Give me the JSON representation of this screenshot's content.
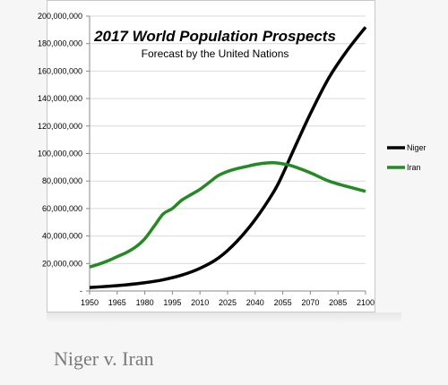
{
  "caption": "Niger v. Iran",
  "chart_data": {
    "type": "line",
    "title": "2017 World Population Prospects",
    "subtitle": "Forecast by the United Nations",
    "xlabel": "",
    "ylabel": "",
    "x_ticks": [
      "1950",
      "1965",
      "1980",
      "1995",
      "2010",
      "2025",
      "2040",
      "2055",
      "2070",
      "2085",
      "2100"
    ],
    "y_ticks": [
      "-",
      "20,000,000",
      "40,000,000",
      "60,000,000",
      "80,000,000",
      "100,000,000",
      "120,000,000",
      "140,000,000",
      "160,000,000",
      "180,000,000",
      "200,000,000"
    ],
    "xlim": [
      1950,
      2100
    ],
    "ylim": [
      0,
      200000000
    ],
    "grid": "horizontal",
    "legend": "right",
    "series": [
      {
        "name": "Niger",
        "color": "#000000",
        "x": [
          1950,
          1960,
          1970,
          1980,
          1990,
          2000,
          2010,
          2020,
          2030,
          2040,
          2050,
          2055,
          2060,
          2070,
          2080,
          2090,
          2100
        ],
        "values": [
          2500000,
          3400000,
          4500000,
          6000000,
          8200000,
          11500000,
          16500000,
          24000000,
          36000000,
          52000000,
          72000000,
          85000000,
          100000000,
          129000000,
          155000000,
          175000000,
          192000000
        ]
      },
      {
        "name": "Iran",
        "color": "#228b22",
        "x": [
          1950,
          1955,
          1960,
          1965,
          1970,
          1975,
          1980,
          1985,
          1990,
          1995,
          2000,
          2005,
          2010,
          2015,
          2020,
          2025,
          2030,
          2035,
          2040,
          2045,
          2050,
          2055,
          2060,
          2070,
          2080,
          2090,
          2100
        ],
        "values": [
          17500000,
          19500000,
          22000000,
          25000000,
          28000000,
          32000000,
          38000000,
          47000000,
          56000000,
          60000000,
          66000000,
          70000000,
          74000000,
          79000000,
          84000000,
          87000000,
          89000000,
          90500000,
          92000000,
          93000000,
          93300000,
          92500000,
          91000000,
          86000000,
          80000000,
          76000000,
          72500000
        ]
      }
    ]
  }
}
